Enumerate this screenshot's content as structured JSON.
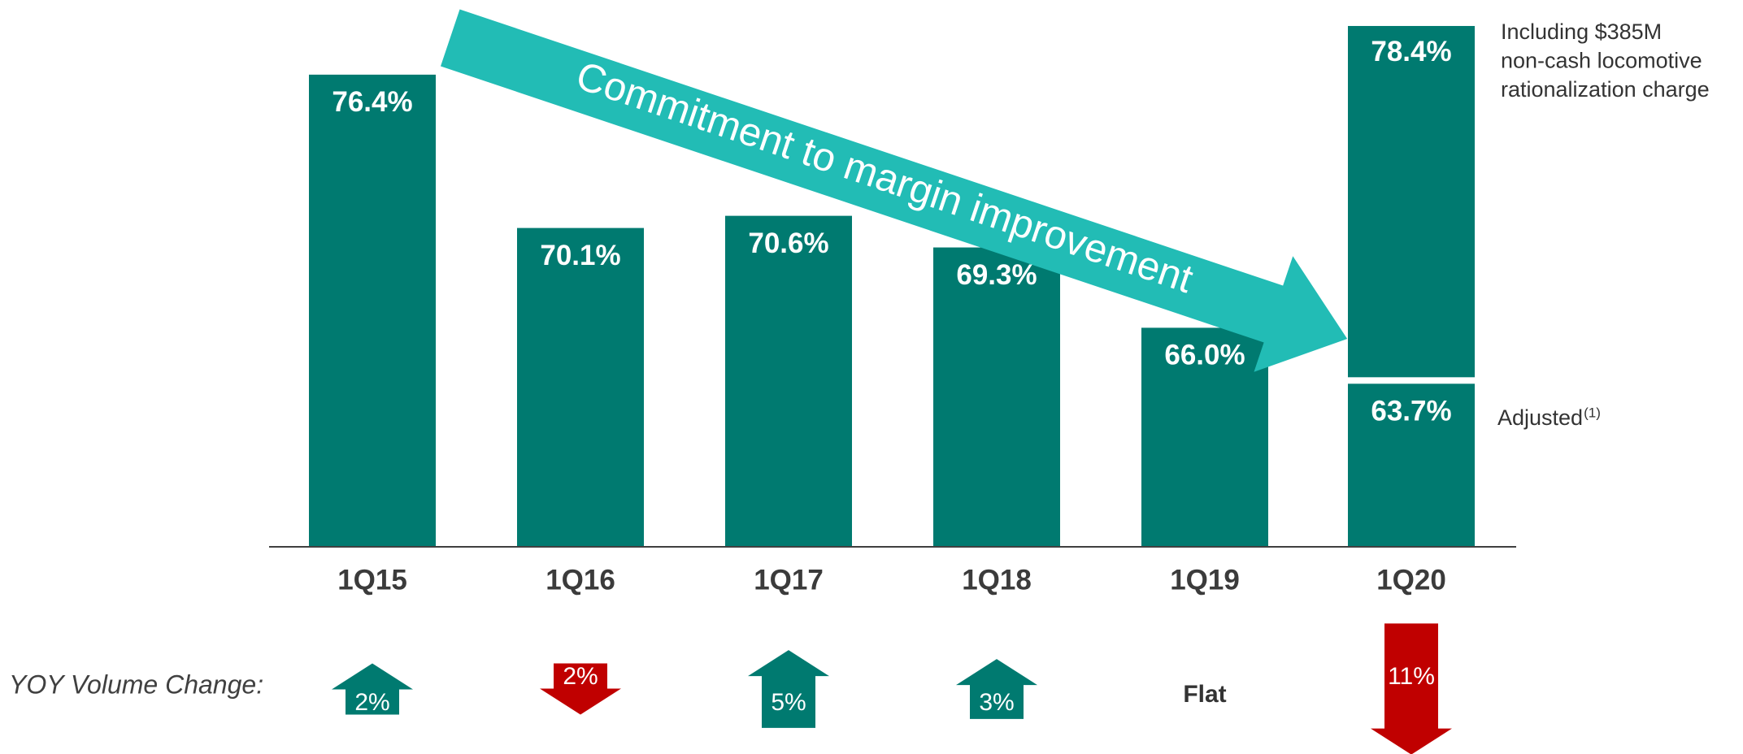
{
  "chart_data": {
    "type": "bar",
    "categories": [
      "1Q15",
      "1Q16",
      "1Q17",
      "1Q18",
      "1Q19",
      "1Q20"
    ],
    "values": [
      76.4,
      70.1,
      70.6,
      69.3,
      66.0,
      63.7
    ],
    "value_labels": [
      "76.4%",
      "70.1%",
      "70.6%",
      "69.3%",
      "66.0%",
      "63.7%"
    ],
    "color": "#007a70",
    "ylim": [
      57,
      79
    ],
    "highlight": {
      "value": 78.4,
      "value_label": "78.4%",
      "note_lines": [
        "Including $385M",
        "non-cash locomotive",
        "rationalization charge"
      ]
    },
    "adjusted_label": "Adjusted",
    "adjusted_footnote": "(1)",
    "arrow_text": "Commitment to margin improvement",
    "arrow_color": "#22bcb5",
    "volume": {
      "label": "YOY Volume Change:",
      "values": [
        2,
        -2,
        5,
        3,
        0,
        -11
      ],
      "value_labels": [
        "2%",
        "2%",
        "5%",
        "3%",
        "Flat",
        "11%"
      ],
      "up_color": "#007a70",
      "down_color": "#c00000"
    }
  }
}
